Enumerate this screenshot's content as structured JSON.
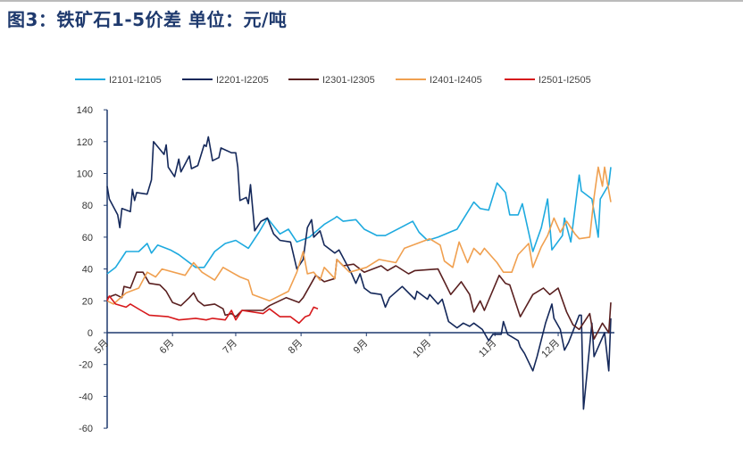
{
  "title": "图3：铁矿石1-5价差  单位：元/吨",
  "chart_data": {
    "type": "line",
    "title": "图3：铁矿石1-5价差  单位：元/吨",
    "xlabel": "",
    "ylabel": "",
    "ylim": [
      -60,
      140
    ],
    "yticks": [
      "140",
      "120",
      "100",
      "80",
      "60",
      "40",
      "20",
      "0",
      "-20",
      "-40",
      "-60"
    ],
    "xticks": [
      {
        "label": "5月",
        "date": "05-01"
      },
      {
        "label": "6月",
        "date": "06-01"
      },
      {
        "label": "7月",
        "date": "07-01"
      },
      {
        "label": "8月",
        "date": "08-01"
      },
      {
        "label": "9月",
        "date": "09-01"
      },
      {
        "label": "10月",
        "date": "10-01"
      },
      {
        "label": "11月",
        "date": "11-01"
      },
      {
        "label": "12月",
        "date": "12-01"
      }
    ],
    "grid": false,
    "legend": "top",
    "series": [
      {
        "name": "I2101-I2105",
        "color": "#1eaadf",
        "points": [
          [
            "05-01",
            37
          ],
          [
            "05-05",
            41
          ],
          [
            "05-10",
            51
          ],
          [
            "05-16",
            51
          ],
          [
            "05-20",
            56
          ],
          [
            "05-22",
            50
          ],
          [
            "05-25",
            55
          ],
          [
            "05-31",
            52
          ],
          [
            "06-04",
            49
          ],
          [
            "06-12",
            41
          ],
          [
            "06-16",
            41
          ],
          [
            "06-21",
            51
          ],
          [
            "06-26",
            56
          ],
          [
            "07-01",
            58
          ],
          [
            "07-07",
            53
          ],
          [
            "07-12",
            63
          ],
          [
            "07-16",
            72
          ],
          [
            "07-22",
            62
          ],
          [
            "07-26",
            65
          ],
          [
            "07-30",
            57
          ],
          [
            "08-05",
            60
          ],
          [
            "08-12",
            68
          ],
          [
            "08-17",
            72
          ],
          [
            "08-18",
            73
          ],
          [
            "08-21",
            70
          ],
          [
            "08-27",
            71
          ],
          [
            "08-31",
            65
          ],
          [
            "09-06",
            61
          ],
          [
            "09-10",
            61
          ],
          [
            "09-23",
            70
          ],
          [
            "09-26",
            63
          ],
          [
            "09-30",
            58
          ],
          [
            "10-05",
            60
          ],
          [
            "10-14",
            65
          ],
          [
            "10-22",
            82
          ],
          [
            "10-25",
            78
          ],
          [
            "10-29",
            77
          ],
          [
            "11-02",
            94
          ],
          [
            "11-06",
            88
          ],
          [
            "11-08",
            74
          ],
          [
            "11-12",
            74
          ],
          [
            "11-14",
            81
          ],
          [
            "11-19",
            51
          ],
          [
            "11-23",
            66
          ],
          [
            "11-26",
            84
          ],
          [
            "11-28",
            52
          ],
          [
            "12-03",
            61
          ],
          [
            "12-04",
            72
          ],
          [
            "12-07",
            57
          ],
          [
            "12-11",
            99
          ],
          [
            "12-12",
            89
          ],
          [
            "12-17",
            84
          ],
          [
            "12-20",
            60
          ],
          [
            "12-21",
            84
          ],
          [
            "12-25",
            93
          ],
          [
            "12-26",
            104
          ]
        ]
      },
      {
        "name": "I2201-I2205",
        "color": "#14285a",
        "points": [
          [
            "05-01",
            92
          ],
          [
            "05-02",
            84
          ],
          [
            "05-06",
            74
          ],
          [
            "05-07",
            66
          ],
          [
            "05-08",
            78
          ],
          [
            "05-12",
            76
          ],
          [
            "05-13",
            90
          ],
          [
            "05-14",
            83
          ],
          [
            "05-15",
            88
          ],
          [
            "05-20",
            87
          ],
          [
            "05-22",
            96
          ],
          [
            "05-23",
            120
          ],
          [
            "05-28",
            112
          ],
          [
            "05-29",
            118
          ],
          [
            "05-30",
            104
          ],
          [
            "06-02",
            98
          ],
          [
            "06-04",
            109
          ],
          [
            "06-05",
            101
          ],
          [
            "06-09",
            111
          ],
          [
            "06-10",
            103
          ],
          [
            "06-13",
            105
          ],
          [
            "06-16",
            118
          ],
          [
            "06-17",
            117
          ],
          [
            "06-18",
            123
          ],
          [
            "06-20",
            108
          ],
          [
            "06-23",
            110
          ],
          [
            "06-24",
            116
          ],
          [
            "06-29",
            113
          ],
          [
            "07-01",
            113
          ],
          [
            "07-02",
            104
          ],
          [
            "07-03",
            83
          ],
          [
            "07-06",
            85
          ],
          [
            "07-07",
            81
          ],
          [
            "07-08",
            93
          ],
          [
            "07-10",
            64
          ],
          [
            "07-13",
            70
          ],
          [
            "07-16",
            72
          ],
          [
            "07-19",
            62
          ],
          [
            "07-22",
            58
          ],
          [
            "07-27",
            57
          ],
          [
            "07-30",
            40
          ],
          [
            "08-02",
            46
          ],
          [
            "08-04",
            66
          ],
          [
            "08-06",
            71
          ],
          [
            "08-07",
            60
          ],
          [
            "08-10",
            64
          ],
          [
            "08-12",
            55
          ],
          [
            "08-17",
            50
          ],
          [
            "08-19",
            52
          ],
          [
            "08-25",
            37
          ],
          [
            "08-27",
            31
          ],
          [
            "08-29",
            37
          ],
          [
            "08-31",
            28
          ],
          [
            "09-03",
            25
          ],
          [
            "09-08",
            24
          ],
          [
            "09-10",
            16
          ],
          [
            "09-12",
            22
          ],
          [
            "09-18",
            29
          ],
          [
            "09-24",
            21
          ],
          [
            "09-25",
            26
          ],
          [
            "09-30",
            21
          ],
          [
            "10-01",
            24
          ],
          [
            "10-05",
            18
          ],
          [
            "10-07",
            21
          ],
          [
            "10-10",
            7
          ],
          [
            "10-14",
            3
          ],
          [
            "10-17",
            6
          ],
          [
            "10-20",
            4
          ],
          [
            "10-22",
            6
          ],
          [
            "10-26",
            2
          ],
          [
            "10-29",
            -5
          ],
          [
            "10-31",
            -1
          ],
          [
            "11-04",
            -1
          ],
          [
            "11-05",
            7
          ],
          [
            "11-07",
            -1
          ],
          [
            "11-12",
            -5
          ],
          [
            "11-13",
            -9
          ],
          [
            "11-15",
            -13
          ],
          [
            "11-19",
            -24
          ],
          [
            "11-21",
            -15
          ],
          [
            "11-25",
            6
          ],
          [
            "11-28",
            18
          ],
          [
            "11-29",
            9
          ],
          [
            "12-02",
            2
          ],
          [
            "12-04",
            -11
          ],
          [
            "12-06",
            -6
          ],
          [
            "12-11",
            11
          ],
          [
            "12-12",
            11
          ],
          [
            "12-13",
            -48
          ],
          [
            "12-17",
            6
          ],
          [
            "12-18",
            -15
          ],
          [
            "12-23",
            0
          ],
          [
            "12-25",
            -24
          ],
          [
            "12-26",
            9
          ]
        ]
      },
      {
        "name": "I2301-I2305",
        "color": "#5a2020",
        "points": [
          [
            "05-01",
            22
          ],
          [
            "05-05",
            24
          ],
          [
            "05-08",
            22
          ],
          [
            "05-09",
            29
          ],
          [
            "05-12",
            28
          ],
          [
            "05-15",
            38
          ],
          [
            "05-18",
            38
          ],
          [
            "05-21",
            31
          ],
          [
            "05-26",
            30
          ],
          [
            "05-29",
            26
          ],
          [
            "06-01",
            19
          ],
          [
            "06-05",
            17
          ],
          [
            "06-09",
            22
          ],
          [
            "06-11",
            25
          ],
          [
            "06-13",
            20
          ],
          [
            "06-16",
            17
          ],
          [
            "06-21",
            18
          ],
          [
            "06-25",
            15
          ],
          [
            "06-26",
            11
          ],
          [
            "06-29",
            12
          ],
          [
            "07-01",
            10
          ],
          [
            "07-04",
            14
          ],
          [
            "07-14",
            14
          ],
          [
            "07-17",
            17
          ],
          [
            "07-25",
            22
          ],
          [
            "07-31",
            19
          ],
          [
            "08-02",
            22
          ],
          [
            "08-05",
            29
          ],
          [
            "08-08",
            36
          ],
          [
            "08-12",
            32
          ],
          [
            "08-17",
            34
          ],
          [
            "08-18",
            46
          ],
          [
            "08-21",
            42
          ],
          [
            "08-26",
            43
          ],
          [
            "08-31",
            38
          ],
          [
            "09-08",
            42
          ],
          [
            "09-11",
            39
          ],
          [
            "09-15",
            42
          ],
          [
            "09-21",
            37
          ],
          [
            "09-24",
            39
          ],
          [
            "10-05",
            40
          ],
          [
            "10-08",
            32
          ],
          [
            "10-11",
            24
          ],
          [
            "10-16",
            32
          ],
          [
            "10-20",
            24
          ],
          [
            "10-22",
            13
          ],
          [
            "10-25",
            20
          ],
          [
            "10-27",
            14
          ],
          [
            "11-03",
            36
          ],
          [
            "11-06",
            31
          ],
          [
            "11-08",
            30
          ],
          [
            "11-13",
            10
          ],
          [
            "11-19",
            24
          ],
          [
            "11-24",
            28
          ],
          [
            "11-27",
            24
          ],
          [
            "12-01",
            28
          ],
          [
            "12-05",
            13
          ],
          [
            "12-08",
            5
          ],
          [
            "12-11",
            2
          ],
          [
            "12-16",
            12
          ],
          [
            "12-18",
            -4
          ],
          [
            "12-22",
            6
          ],
          [
            "12-25",
            0
          ],
          [
            "12-26",
            19
          ]
        ]
      },
      {
        "name": "I2401-I2405",
        "color": "#f0a050",
        "points": [
          [
            "05-01",
            20
          ],
          [
            "05-04",
            18
          ],
          [
            "05-10",
            25
          ],
          [
            "05-16",
            28
          ],
          [
            "05-20",
            38
          ],
          [
            "05-24",
            35
          ],
          [
            "05-27",
            40
          ],
          [
            "06-07",
            36
          ],
          [
            "06-11",
            44
          ],
          [
            "06-15",
            38
          ],
          [
            "06-21",
            33
          ],
          [
            "06-25",
            41
          ],
          [
            "06-29",
            38
          ],
          [
            "07-03",
            35
          ],
          [
            "07-07",
            33
          ],
          [
            "07-09",
            24
          ],
          [
            "07-13",
            22
          ],
          [
            "07-17",
            20
          ],
          [
            "07-26",
            26
          ],
          [
            "07-30",
            38
          ],
          [
            "08-02",
            51
          ],
          [
            "08-04",
            37
          ],
          [
            "08-07",
            38
          ],
          [
            "08-10",
            33
          ],
          [
            "08-12",
            41
          ],
          [
            "08-17",
            34
          ],
          [
            "08-18",
            46
          ],
          [
            "08-24",
            38
          ],
          [
            "09-01",
            41
          ],
          [
            "09-07",
            46
          ],
          [
            "09-15",
            44
          ],
          [
            "09-19",
            53
          ],
          [
            "10-01",
            59
          ],
          [
            "10-06",
            55
          ],
          [
            "10-08",
            45
          ],
          [
            "10-12",
            41
          ],
          [
            "10-15",
            57
          ],
          [
            "10-19",
            44
          ],
          [
            "10-22",
            53
          ],
          [
            "10-25",
            49
          ],
          [
            "10-27",
            53
          ],
          [
            "11-02",
            44
          ],
          [
            "11-05",
            38
          ],
          [
            "11-09",
            38
          ],
          [
            "11-12",
            49
          ],
          [
            "11-17",
            56
          ],
          [
            "11-19",
            41
          ],
          [
            "11-23",
            54
          ],
          [
            "11-26",
            61
          ],
          [
            "11-29",
            72
          ],
          [
            "12-02",
            63
          ],
          [
            "12-05",
            70
          ],
          [
            "12-09",
            62
          ],
          [
            "12-11",
            59
          ],
          [
            "12-16",
            60
          ],
          [
            "12-18",
            85
          ],
          [
            "12-20",
            104
          ],
          [
            "12-22",
            92
          ],
          [
            "12-23",
            104
          ],
          [
            "12-26",
            82
          ]
        ]
      },
      {
        "name": "I2501-I2505",
        "color": "#d7191c",
        "points": [
          [
            "05-01",
            20
          ],
          [
            "05-02",
            23
          ],
          [
            "05-05",
            18
          ],
          [
            "05-10",
            16
          ],
          [
            "05-12",
            18
          ],
          [
            "05-17",
            14
          ],
          [
            "05-21",
            11
          ],
          [
            "05-30",
            10
          ],
          [
            "06-04",
            8
          ],
          [
            "06-12",
            9
          ],
          [
            "06-17",
            8
          ],
          [
            "06-20",
            9
          ],
          [
            "06-26",
            8
          ],
          [
            "06-29",
            14
          ],
          [
            "07-01",
            8
          ],
          [
            "07-04",
            14
          ],
          [
            "07-14",
            12
          ],
          [
            "07-17",
            15
          ],
          [
            "07-22",
            10
          ],
          [
            "07-27",
            10
          ],
          [
            "07-31",
            6
          ],
          [
            "08-03",
            10
          ],
          [
            "08-05",
            11
          ],
          [
            "08-07",
            16
          ],
          [
            "08-09",
            15
          ]
        ]
      }
    ]
  }
}
